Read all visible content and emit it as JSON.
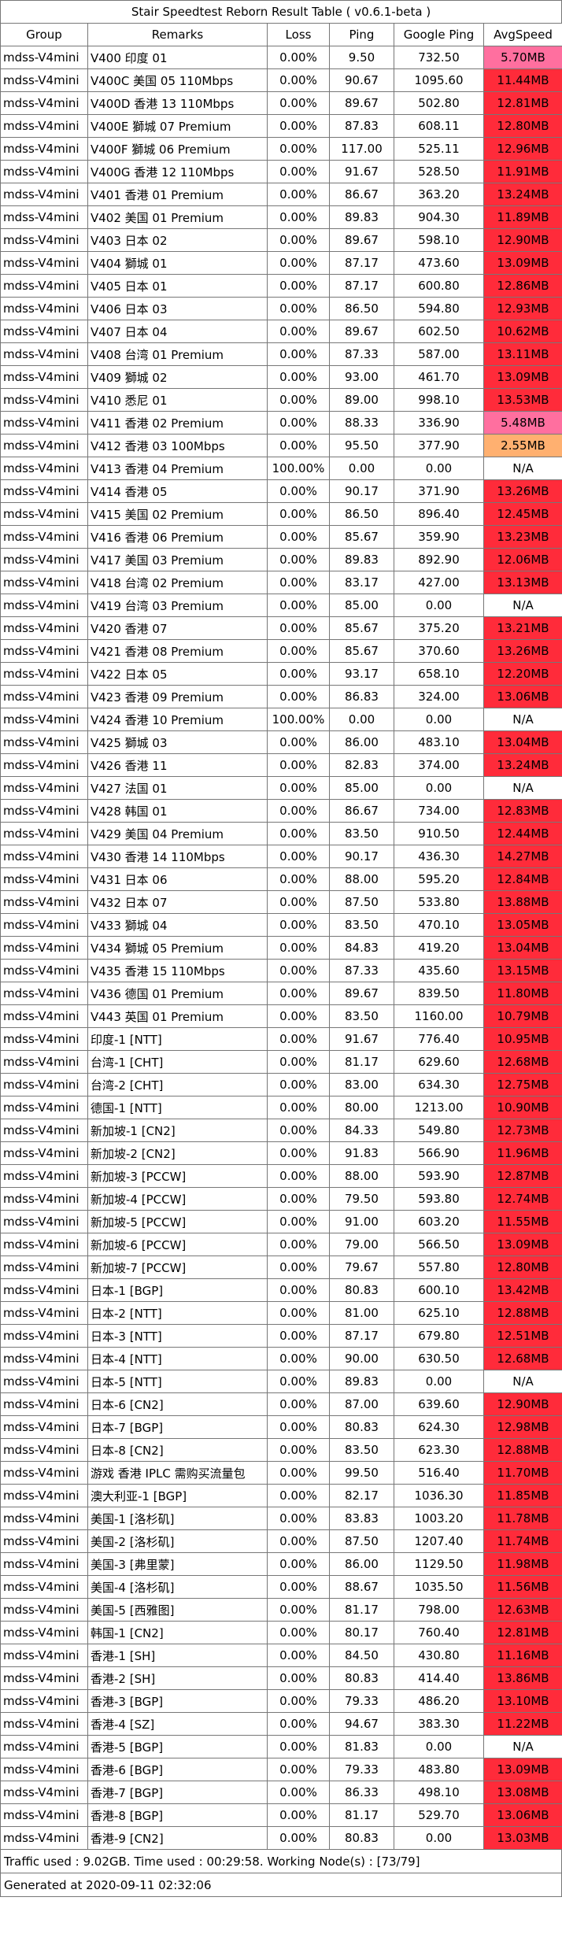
{
  "title": "Stair Speedtest Reborn Result Table ( v0.6.1-beta )",
  "columns": [
    "Group",
    "Remarks",
    "Loss",
    "Ping",
    "Google Ping",
    "AvgSpeed"
  ],
  "speed_colors": {
    "high": "#ff2b3a",
    "mid_pink": "#ff6f9f",
    "low_orange": "#ffb070",
    "na": "#ffffff"
  },
  "rows": [
    [
      "mdss-V4mini",
      "V400 印度 01",
      "0.00%",
      "9.50",
      "732.50",
      "5.70MB",
      "pink"
    ],
    [
      "mdss-V4mini",
      "V400C 美国 05 110Mbps",
      "0.00%",
      "90.67",
      "1095.60",
      "11.44MB",
      "red"
    ],
    [
      "mdss-V4mini",
      "V400D 香港 13 110Mbps",
      "0.00%",
      "89.67",
      "502.80",
      "12.81MB",
      "red"
    ],
    [
      "mdss-V4mini",
      "V400E 獅城 07 Premium",
      "0.00%",
      "87.83",
      "608.11",
      "12.80MB",
      "red"
    ],
    [
      "mdss-V4mini",
      "V400F 獅城 06 Premium",
      "0.00%",
      "117.00",
      "525.11",
      "12.96MB",
      "red"
    ],
    [
      "mdss-V4mini",
      "V400G 香港 12 110Mbps",
      "0.00%",
      "91.67",
      "528.50",
      "11.91MB",
      "red"
    ],
    [
      "mdss-V4mini",
      "V401 香港 01 Premium",
      "0.00%",
      "86.67",
      "363.20",
      "13.24MB",
      "red"
    ],
    [
      "mdss-V4mini",
      "V402 美国 01 Premium",
      "0.00%",
      "89.83",
      "904.30",
      "11.89MB",
      "red"
    ],
    [
      "mdss-V4mini",
      "V403 日本 02",
      "0.00%",
      "89.67",
      "598.10",
      "12.90MB",
      "red"
    ],
    [
      "mdss-V4mini",
      "V404 獅城 01",
      "0.00%",
      "87.17",
      "473.60",
      "13.09MB",
      "red"
    ],
    [
      "mdss-V4mini",
      "V405 日本 01",
      "0.00%",
      "87.17",
      "600.80",
      "12.86MB",
      "red"
    ],
    [
      "mdss-V4mini",
      "V406 日本 03",
      "0.00%",
      "86.50",
      "594.80",
      "12.93MB",
      "red"
    ],
    [
      "mdss-V4mini",
      "V407 日本 04",
      "0.00%",
      "89.67",
      "602.50",
      "10.62MB",
      "red"
    ],
    [
      "mdss-V4mini",
      "V408 台湾 01 Premium",
      "0.00%",
      "87.33",
      "587.00",
      "13.11MB",
      "red"
    ],
    [
      "mdss-V4mini",
      "V409 獅城 02",
      "0.00%",
      "93.00",
      "461.70",
      "13.09MB",
      "red"
    ],
    [
      "mdss-V4mini",
      "V410 悉尼 01",
      "0.00%",
      "89.00",
      "998.10",
      "13.53MB",
      "red"
    ],
    [
      "mdss-V4mini",
      "V411 香港 02 Premium",
      "0.00%",
      "88.33",
      "336.90",
      "5.48MB",
      "pink"
    ],
    [
      "mdss-V4mini",
      "V412 香港 03 100Mbps",
      "0.00%",
      "95.50",
      "377.90",
      "2.55MB",
      "orange"
    ],
    [
      "mdss-V4mini",
      "V413 香港 04 Premium",
      "100.00%",
      "0.00",
      "0.00",
      "N/A",
      "na"
    ],
    [
      "mdss-V4mini",
      "V414 香港 05",
      "0.00%",
      "90.17",
      "371.90",
      "13.26MB",
      "red"
    ],
    [
      "mdss-V4mini",
      "V415 美国 02 Premium",
      "0.00%",
      "86.50",
      "896.40",
      "12.45MB",
      "red"
    ],
    [
      "mdss-V4mini",
      "V416 香港 06 Premium",
      "0.00%",
      "85.67",
      "359.90",
      "13.23MB",
      "red"
    ],
    [
      "mdss-V4mini",
      "V417 美国 03 Premium",
      "0.00%",
      "89.83",
      "892.90",
      "12.06MB",
      "red"
    ],
    [
      "mdss-V4mini",
      "V418 台湾 02 Premium",
      "0.00%",
      "83.17",
      "427.00",
      "13.13MB",
      "red"
    ],
    [
      "mdss-V4mini",
      "V419 台湾 03 Premium",
      "0.00%",
      "85.00",
      "0.00",
      "N/A",
      "na"
    ],
    [
      "mdss-V4mini",
      "V420 香港 07",
      "0.00%",
      "85.67",
      "375.20",
      "13.21MB",
      "red"
    ],
    [
      "mdss-V4mini",
      "V421 香港 08 Premium",
      "0.00%",
      "85.67",
      "370.60",
      "13.26MB",
      "red"
    ],
    [
      "mdss-V4mini",
      "V422 日本 05",
      "0.00%",
      "93.17",
      "658.10",
      "12.20MB",
      "red"
    ],
    [
      "mdss-V4mini",
      "V423 香港 09 Premium",
      "0.00%",
      "86.83",
      "324.00",
      "13.06MB",
      "red"
    ],
    [
      "mdss-V4mini",
      "V424 香港 10 Premium",
      "100.00%",
      "0.00",
      "0.00",
      "N/A",
      "na"
    ],
    [
      "mdss-V4mini",
      "V425 獅城 03",
      "0.00%",
      "86.00",
      "483.10",
      "13.04MB",
      "red"
    ],
    [
      "mdss-V4mini",
      "V426 香港 11",
      "0.00%",
      "82.83",
      "374.00",
      "13.24MB",
      "red"
    ],
    [
      "mdss-V4mini",
      "V427 法国 01",
      "0.00%",
      "85.00",
      "0.00",
      "N/A",
      "na"
    ],
    [
      "mdss-V4mini",
      "V428 韩国 01",
      "0.00%",
      "86.67",
      "734.00",
      "12.83MB",
      "red"
    ],
    [
      "mdss-V4mini",
      "V429 美国 04 Premium",
      "0.00%",
      "83.50",
      "910.50",
      "12.44MB",
      "red"
    ],
    [
      "mdss-V4mini",
      "V430 香港 14 110Mbps",
      "0.00%",
      "90.17",
      "436.30",
      "14.27MB",
      "red"
    ],
    [
      "mdss-V4mini",
      "V431 日本 06",
      "0.00%",
      "88.00",
      "595.20",
      "12.84MB",
      "red"
    ],
    [
      "mdss-V4mini",
      "V432 日本 07",
      "0.00%",
      "87.50",
      "533.80",
      "13.88MB",
      "red"
    ],
    [
      "mdss-V4mini",
      "V433 獅城 04",
      "0.00%",
      "83.50",
      "470.10",
      "13.05MB",
      "red"
    ],
    [
      "mdss-V4mini",
      "V434 獅城 05 Premium",
      "0.00%",
      "84.83",
      "419.20",
      "13.04MB",
      "red"
    ],
    [
      "mdss-V4mini",
      "V435 香港 15 110Mbps",
      "0.00%",
      "87.33",
      "435.60",
      "13.15MB",
      "red"
    ],
    [
      "mdss-V4mini",
      "V436 德国 01 Premium",
      "0.00%",
      "89.67",
      "839.50",
      "11.80MB",
      "red"
    ],
    [
      "mdss-V4mini",
      "V443 英国 01 Premium",
      "0.00%",
      "83.50",
      "1160.00",
      "10.79MB",
      "red"
    ],
    [
      "mdss-V4mini",
      "印度-1 [NTT]",
      "0.00%",
      "91.67",
      "776.40",
      "10.95MB",
      "red"
    ],
    [
      "mdss-V4mini",
      "台湾-1 [CHT]",
      "0.00%",
      "81.17",
      "629.60",
      "12.68MB",
      "red"
    ],
    [
      "mdss-V4mini",
      "台湾-2 [CHT]",
      "0.00%",
      "83.00",
      "634.30",
      "12.75MB",
      "red"
    ],
    [
      "mdss-V4mini",
      "德国-1 [NTT]",
      "0.00%",
      "80.00",
      "1213.00",
      "10.90MB",
      "red"
    ],
    [
      "mdss-V4mini",
      "新加坡-1 [CN2]",
      "0.00%",
      "84.33",
      "549.80",
      "12.73MB",
      "red"
    ],
    [
      "mdss-V4mini",
      "新加坡-2 [CN2]",
      "0.00%",
      "91.83",
      "566.90",
      "11.96MB",
      "red"
    ],
    [
      "mdss-V4mini",
      "新加坡-3 [PCCW]",
      "0.00%",
      "88.00",
      "593.90",
      "12.87MB",
      "red"
    ],
    [
      "mdss-V4mini",
      "新加坡-4 [PCCW]",
      "0.00%",
      "79.50",
      "593.80",
      "12.74MB",
      "red"
    ],
    [
      "mdss-V4mini",
      "新加坡-5 [PCCW]",
      "0.00%",
      "91.00",
      "603.20",
      "11.55MB",
      "red"
    ],
    [
      "mdss-V4mini",
      "新加坡-6 [PCCW]",
      "0.00%",
      "79.00",
      "566.50",
      "13.09MB",
      "red"
    ],
    [
      "mdss-V4mini",
      "新加坡-7 [PCCW]",
      "0.00%",
      "79.67",
      "557.80",
      "12.80MB",
      "red"
    ],
    [
      "mdss-V4mini",
      "日本-1 [BGP]",
      "0.00%",
      "80.83",
      "600.10",
      "13.42MB",
      "red"
    ],
    [
      "mdss-V4mini",
      "日本-2 [NTT]",
      "0.00%",
      "81.00",
      "625.10",
      "12.88MB",
      "red"
    ],
    [
      "mdss-V4mini",
      "日本-3 [NTT]",
      "0.00%",
      "87.17",
      "679.80",
      "12.51MB",
      "red"
    ],
    [
      "mdss-V4mini",
      "日本-4 [NTT]",
      "0.00%",
      "90.00",
      "630.50",
      "12.68MB",
      "red"
    ],
    [
      "mdss-V4mini",
      "日本-5 [NTT]",
      "0.00%",
      "89.83",
      "0.00",
      "N/A",
      "na"
    ],
    [
      "mdss-V4mini",
      "日本-6 [CN2]",
      "0.00%",
      "87.00",
      "639.60",
      "12.90MB",
      "red"
    ],
    [
      "mdss-V4mini",
      "日本-7 [BGP]",
      "0.00%",
      "80.83",
      "624.30",
      "12.98MB",
      "red"
    ],
    [
      "mdss-V4mini",
      "日本-8 [CN2]",
      "0.00%",
      "83.50",
      "623.30",
      "12.88MB",
      "red"
    ],
    [
      "mdss-V4mini",
      "游戏 香港 IPLC 需购买流量包",
      "0.00%",
      "99.50",
      "516.40",
      "11.70MB",
      "red"
    ],
    [
      "mdss-V4mini",
      "澳大利亚-1 [BGP]",
      "0.00%",
      "82.17",
      "1036.30",
      "11.85MB",
      "red"
    ],
    [
      "mdss-V4mini",
      "美国-1 [洛杉矶]",
      "0.00%",
      "83.83",
      "1003.20",
      "11.78MB",
      "red"
    ],
    [
      "mdss-V4mini",
      "美国-2 [洛杉矶]",
      "0.00%",
      "87.50",
      "1207.40",
      "11.74MB",
      "red"
    ],
    [
      "mdss-V4mini",
      "美国-3 [弗里蒙]",
      "0.00%",
      "86.00",
      "1129.50",
      "11.98MB",
      "red"
    ],
    [
      "mdss-V4mini",
      "美国-4 [洛杉矶]",
      "0.00%",
      "88.67",
      "1035.50",
      "11.56MB",
      "red"
    ],
    [
      "mdss-V4mini",
      "美国-5 [西雅图]",
      "0.00%",
      "81.17",
      "798.00",
      "12.63MB",
      "red"
    ],
    [
      "mdss-V4mini",
      "韩国-1 [CN2]",
      "0.00%",
      "80.17",
      "760.40",
      "12.81MB",
      "red"
    ],
    [
      "mdss-V4mini",
      "香港-1 [SH]",
      "0.00%",
      "84.50",
      "430.80",
      "11.16MB",
      "red"
    ],
    [
      "mdss-V4mini",
      "香港-2 [SH]",
      "0.00%",
      "80.83",
      "414.40",
      "13.86MB",
      "red"
    ],
    [
      "mdss-V4mini",
      "香港-3 [BGP]",
      "0.00%",
      "79.33",
      "486.20",
      "13.10MB",
      "red"
    ],
    [
      "mdss-V4mini",
      "香港-4 [SZ]",
      "0.00%",
      "94.67",
      "383.30",
      "11.22MB",
      "red"
    ],
    [
      "mdss-V4mini",
      "香港-5 [BGP]",
      "0.00%",
      "81.83",
      "0.00",
      "N/A",
      "na"
    ],
    [
      "mdss-V4mini",
      "香港-6 [BGP]",
      "0.00%",
      "79.33",
      "483.80",
      "13.09MB",
      "red"
    ],
    [
      "mdss-V4mini",
      "香港-7 [BGP]",
      "0.00%",
      "86.33",
      "498.10",
      "13.08MB",
      "red"
    ],
    [
      "mdss-V4mini",
      "香港-8 [BGP]",
      "0.00%",
      "81.17",
      "529.70",
      "13.06MB",
      "red"
    ],
    [
      "mdss-V4mini",
      "香港-9 [CN2]",
      "0.00%",
      "80.83",
      "0.00",
      "13.03MB",
      "red"
    ]
  ],
  "footer": {
    "summary": "Traffic used : 9.02GB. Time used : 00:29:58. Working Node(s) : [73/79]",
    "generated": "Generated at 2020-09-11 02:32:06"
  }
}
